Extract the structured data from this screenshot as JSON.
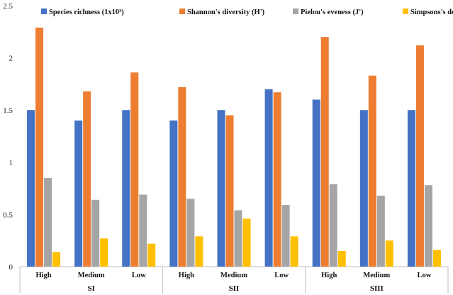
{
  "chart_data": {
    "type": "bar",
    "title": "",
    "xlabel": "",
    "ylabel": "",
    "ylim": [
      0,
      2.5
    ],
    "yticks": [
      "0",
      "0.5",
      "1",
      "1.5",
      "2",
      "2.5"
    ],
    "grid": false,
    "legend_position": "top",
    "groups": [
      {
        "label": "SI",
        "categories": [
          "High",
          "Medium",
          "Low"
        ]
      },
      {
        "label": "SII",
        "categories": [
          "High",
          "Medium",
          "Low"
        ]
      },
      {
        "label": "SIII",
        "categories": [
          "High",
          "Medium",
          "Low"
        ]
      }
    ],
    "categories": [
      "High",
      "Medium",
      "Low",
      "High",
      "Medium",
      "Low",
      "High",
      "Medium",
      "Low"
    ],
    "series": [
      {
        "name": "Species richness (1x10³)",
        "color": "#4472C4",
        "values": [
          1.5,
          1.4,
          1.5,
          1.4,
          1.5,
          1.7,
          1.6,
          1.5,
          1.5
        ]
      },
      {
        "name": "Shannon's diversity (H')",
        "color": "#ED7D31",
        "values": [
          2.29,
          1.68,
          1.86,
          1.72,
          1.45,
          1.67,
          2.2,
          1.83,
          2.12
        ]
      },
      {
        "name": "Pielou's eveness (J')",
        "color": "#A5A5A5",
        "values": [
          0.85,
          0.64,
          0.69,
          0.65,
          0.54,
          0.59,
          0.79,
          0.68,
          0.78
        ]
      },
      {
        "name": "Simpsons's dominance (Dₛ)",
        "color": "#FFC000",
        "values": [
          0.14,
          0.27,
          0.22,
          0.29,
          0.46,
          0.29,
          0.15,
          0.25,
          0.16
        ]
      }
    ]
  }
}
